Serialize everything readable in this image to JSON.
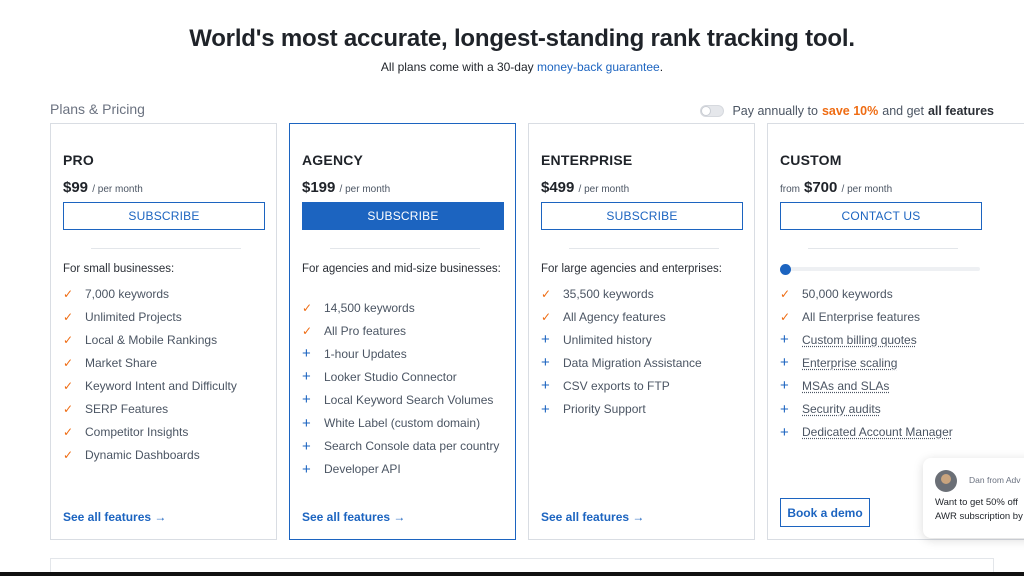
{
  "hero": {
    "title": "World's most accurate, longest-standing rank tracking tool.",
    "subtitle_prefix": "All plans come with a 30-day ",
    "subtitle_link": "money-back guarantee",
    "subtitle_suffix": "."
  },
  "plans_title": "Plans & Pricing",
  "billing": {
    "prefix": "Pay annually to",
    "save": "save 10%",
    "middle": "and get",
    "suffix": "all features",
    "annual_enabled": false
  },
  "plans": [
    {
      "name": "PRO",
      "price": "$99",
      "period": "/ per month",
      "cta": "SUBSCRIBE",
      "for": "For small businesses:",
      "features": [
        {
          "icon": "check",
          "text": "7,000 keywords"
        },
        {
          "icon": "check",
          "text": "Unlimited Projects"
        },
        {
          "icon": "check",
          "text": "Local & Mobile Rankings"
        },
        {
          "icon": "check",
          "text": "Market Share"
        },
        {
          "icon": "check",
          "text": "Keyword Intent and Difficulty"
        },
        {
          "icon": "check",
          "text": "SERP Features"
        },
        {
          "icon": "check",
          "text": "Competitor Insights"
        },
        {
          "icon": "check",
          "text": "Dynamic Dashboards"
        }
      ],
      "see_all": "See all features →"
    },
    {
      "name": "AGENCY",
      "price": "$199",
      "period": "/ per month",
      "cta": "SUBSCRIBE",
      "for": "For agencies and mid-size businesses:",
      "features": [
        {
          "icon": "check",
          "text": "14,500 keywords"
        },
        {
          "icon": "check",
          "text": "All Pro features"
        },
        {
          "icon": "plus",
          "text": "1-hour Updates"
        },
        {
          "icon": "plus",
          "text": "Looker Studio Connector"
        },
        {
          "icon": "plus",
          "text": "Local Keyword Search Volumes"
        },
        {
          "icon": "plus",
          "text": "White Label (custom domain)"
        },
        {
          "icon": "plus",
          "text": "Search Console data per country"
        },
        {
          "icon": "plus",
          "text": "Developer API"
        }
      ],
      "see_all": "See all features →"
    },
    {
      "name": "ENTERPRISE",
      "price": "$499",
      "period": "/ per month",
      "cta": "SUBSCRIBE",
      "for": "For large agencies and enterprises:",
      "features": [
        {
          "icon": "check",
          "text": "35,500 keywords"
        },
        {
          "icon": "check",
          "text": "All Agency features"
        },
        {
          "icon": "plus",
          "text": "Unlimited history"
        },
        {
          "icon": "plus",
          "text": "Data Migration Assistance"
        },
        {
          "icon": "plus",
          "text": "CSV exports to FTP"
        },
        {
          "icon": "plus",
          "text": "Priority Support"
        }
      ],
      "see_all": "See all features →"
    },
    {
      "name": "CUSTOM",
      "price_prefix": "from",
      "price": "$700",
      "period": "/ per month",
      "cta": "CONTACT US",
      "slider_value": 0,
      "features": [
        {
          "icon": "check",
          "text": "50,000 keywords"
        },
        {
          "icon": "check",
          "text": "All Enterprise features"
        },
        {
          "icon": "plus",
          "text": "Custom billing quotes"
        },
        {
          "icon": "plus",
          "text": "Enterprise scaling"
        },
        {
          "icon": "plus",
          "text": "MSAs and SLAs"
        },
        {
          "icon": "plus",
          "text": "Security audits"
        },
        {
          "icon": "plus",
          "text": "Dedicated Account Manager"
        }
      ],
      "book_demo": "Book a demo"
    }
  ],
  "chat": {
    "from": "Dan from Adv",
    "line1": "Want to get 50% off",
    "line2": "AWR subscription by"
  },
  "colors": {
    "accent": "#1c64c0",
    "highlight": "#ef6c13",
    "text": "#1f2329"
  }
}
